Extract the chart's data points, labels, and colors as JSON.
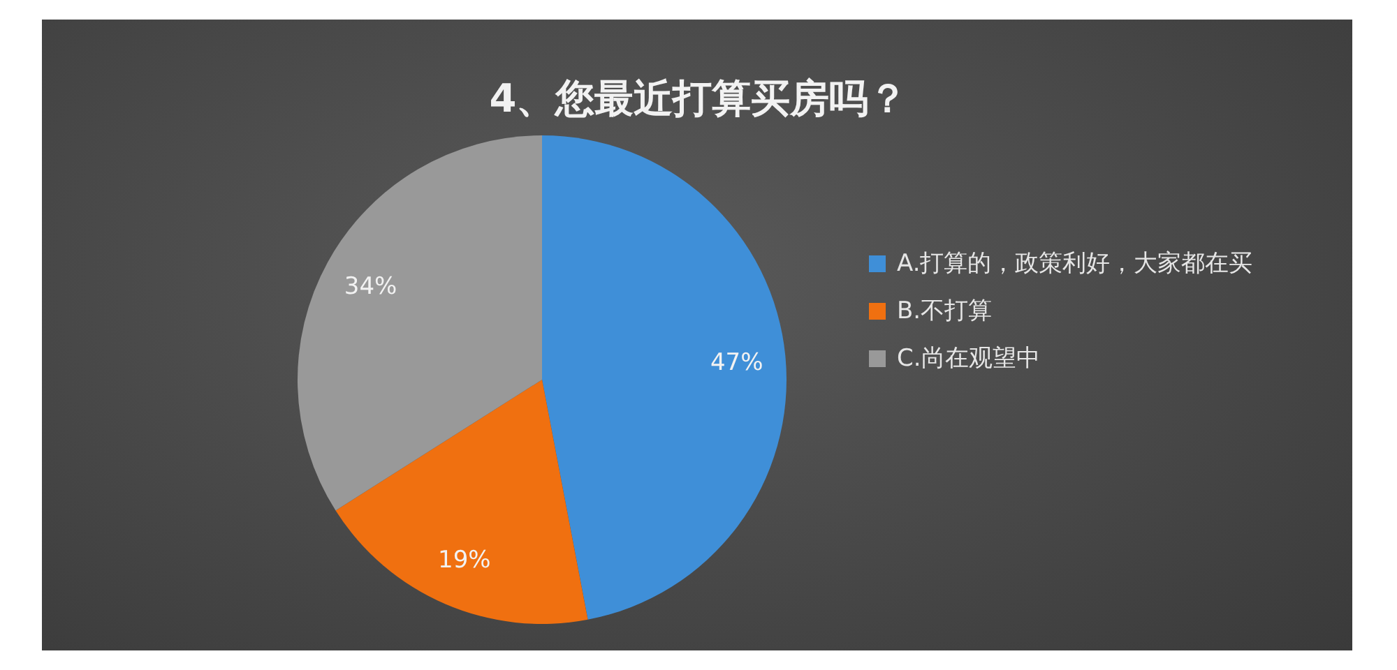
{
  "chart_data": {
    "type": "pie",
    "title": "4、您最近打算买房吗？",
    "categories": [
      "A.打算的，政策利好，大家都在买",
      "B.不打算",
      "C.尚在观望中"
    ],
    "values": [
      47,
      19,
      34
    ],
    "colors": [
      "#3f8fd8",
      "#f07010",
      "#999999"
    ],
    "value_labels": [
      "47%",
      "19%",
      "34%"
    ],
    "legend": "right"
  }
}
